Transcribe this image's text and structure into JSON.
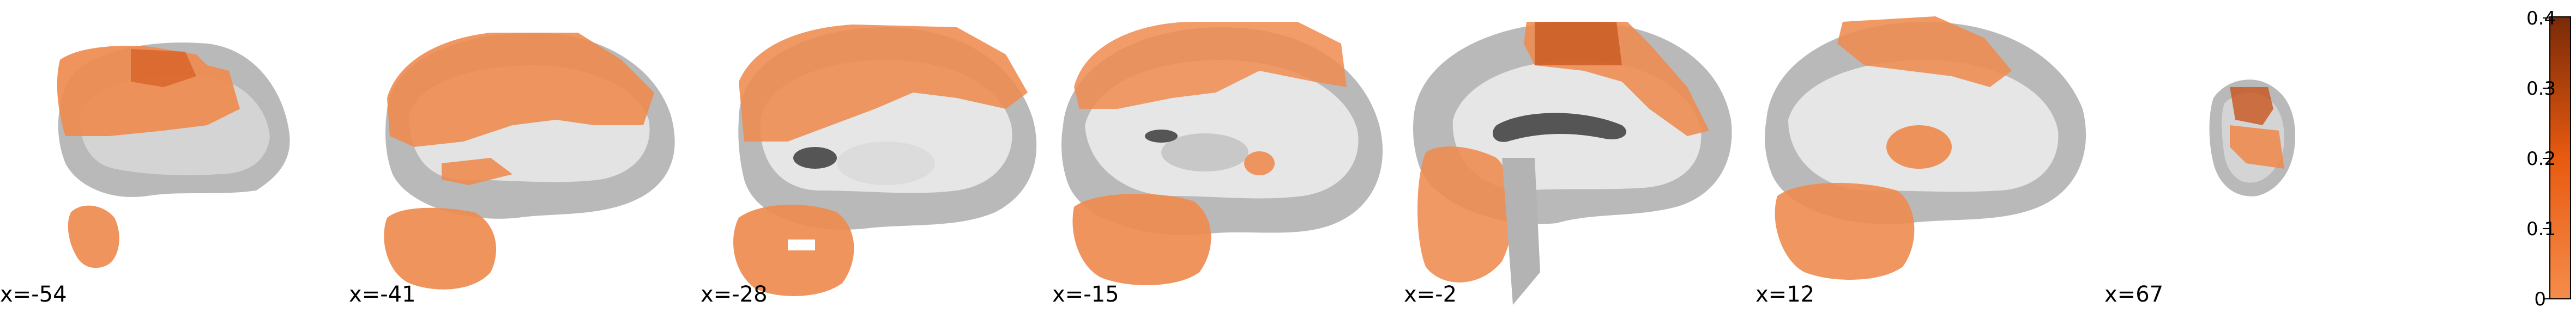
{
  "slices": [
    {
      "label": "x=-54",
      "overlay_value": 0.18
    },
    {
      "label": "x=-41",
      "overlay_value": 0.2
    },
    {
      "label": "x=-28",
      "overlay_value": 0.19
    },
    {
      "label": "x=-15",
      "overlay_value": 0.21
    },
    {
      "label": "x=-2",
      "overlay_value": 0.26
    },
    {
      "label": "x=12",
      "overlay_value": 0.22
    },
    {
      "label": "x=67",
      "overlay_value": 0.24
    }
  ],
  "colorbar": {
    "ticks": [
      "0",
      "0.1",
      "0.2",
      "0.3",
      "0.4"
    ],
    "range": [
      0,
      0.4
    ],
    "colors": {
      "low": "#f58c4a",
      "mid": "#e85a10",
      "high": "#7a2a08"
    }
  },
  "colors": {
    "brain_outer": "#9a9a9a",
    "brain_mid": "#c8c8c8",
    "brain_inner": "#e6e6e6",
    "overlay": "#f0884a",
    "overlay_dark": "#c8551e"
  }
}
